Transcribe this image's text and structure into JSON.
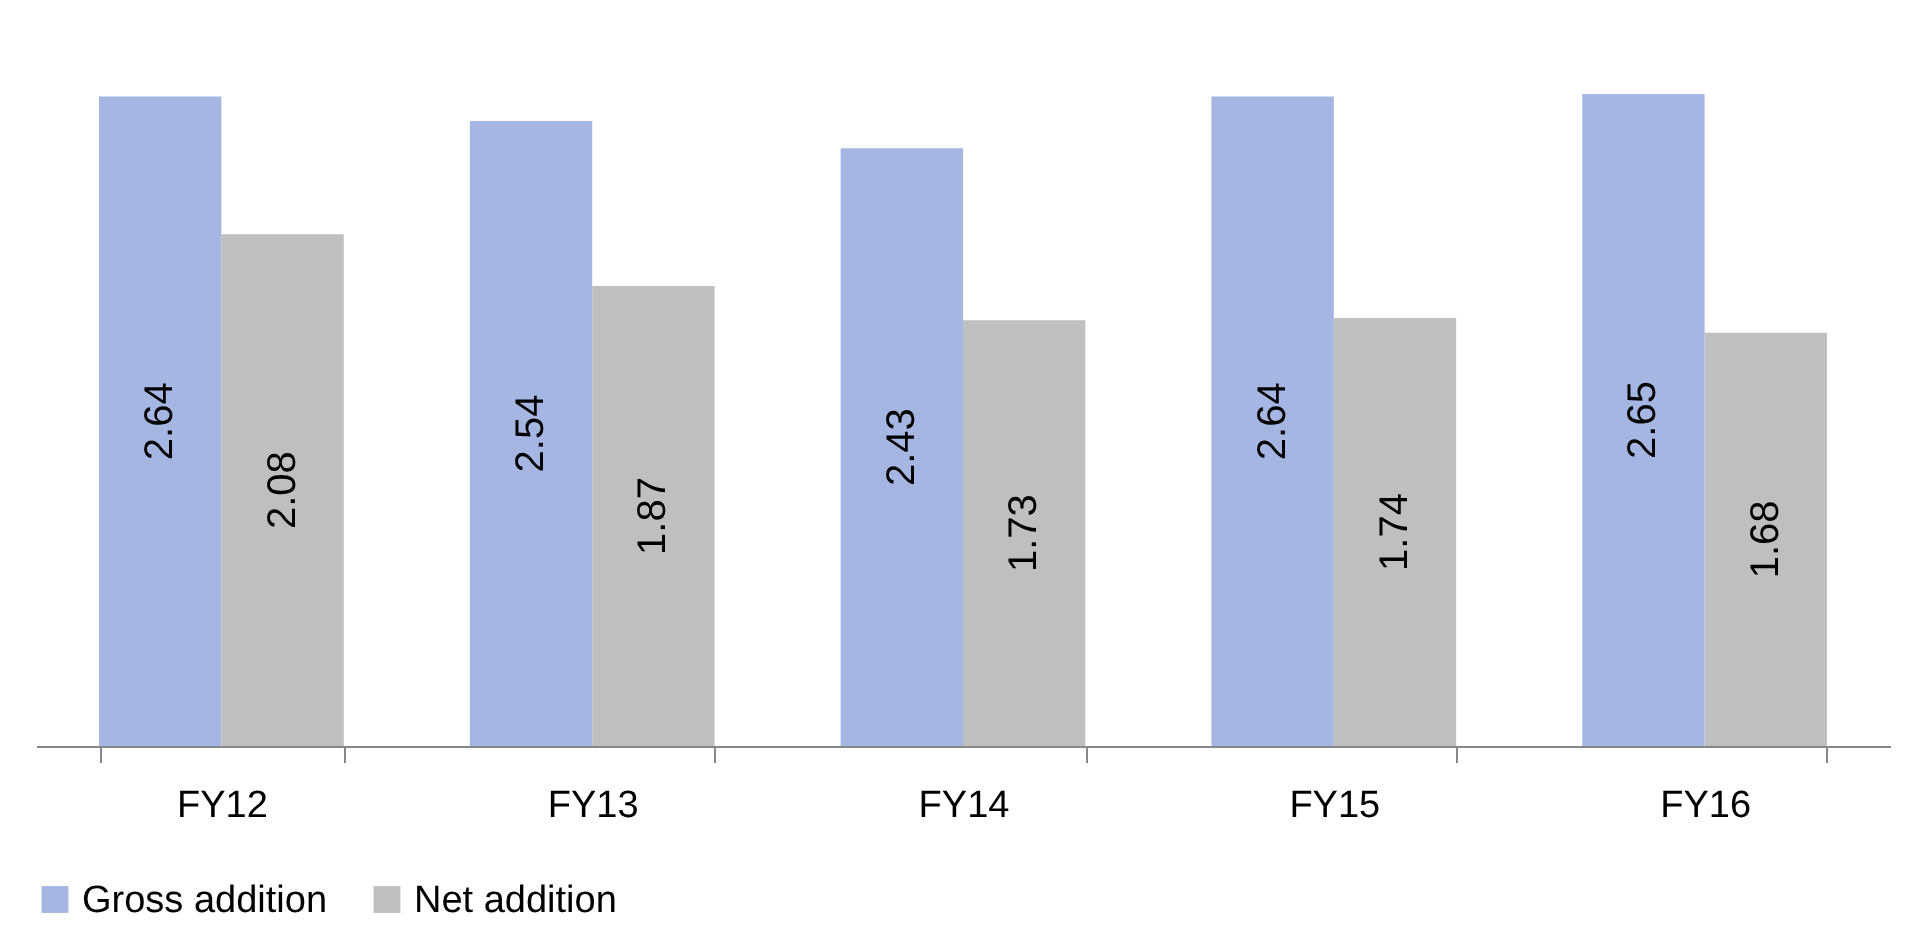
{
  "chart_data": {
    "type": "bar",
    "categories": [
      "FY12",
      "FY13",
      "FY14",
      "FY15",
      "FY16"
    ],
    "series": [
      {
        "name": "Gross addition",
        "color": "#a4b6e1",
        "values": [
          2.64,
          2.54,
          2.43,
          2.64,
          2.65
        ]
      },
      {
        "name": "Net addition",
        "color": "#bfbfbf",
        "values": [
          2.08,
          1.87,
          1.73,
          1.74,
          1.68
        ]
      }
    ],
    "data_labels": true,
    "legend": "bottom"
  }
}
